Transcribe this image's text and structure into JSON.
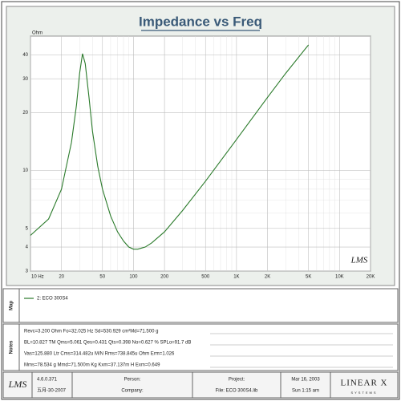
{
  "chart_data": {
    "type": "line",
    "title": "Impedance vs Freq",
    "y_label": "Ohm",
    "annotation": "LMS",
    "log_x": true,
    "log_y": true,
    "grid": true,
    "x": [
      10,
      15,
      20,
      25,
      28,
      30,
      32,
      34,
      37,
      40,
      45,
      50,
      60,
      70,
      80,
      90,
      100,
      110,
      130,
      150,
      200,
      300,
      500,
      1000,
      2000,
      3000,
      5000
    ],
    "series": [
      {
        "name": "2: ECO 300S4",
        "color": "#2a7a2a",
        "values": [
          4.6,
          5.6,
          8,
          14,
          22,
          32,
          40.5,
          36,
          24,
          16,
          10.5,
          8,
          5.8,
          4.8,
          4.3,
          4.0,
          3.9,
          3.9,
          4.0,
          4.2,
          4.8,
          6.2,
          8.8,
          14.5,
          24,
          32,
          45
        ]
      }
    ],
    "xlim": [
      10,
      20000
    ],
    "ylim": [
      3,
      50
    ],
    "xticks": [
      {
        "value": 10,
        "label": "10 Hz"
      },
      20,
      50,
      100,
      200,
      500,
      {
        "value": 1000,
        "label": "1K"
      },
      {
        "value": 2000,
        "label": "2K"
      },
      {
        "value": 5000,
        "label": "5K"
      },
      {
        "value": 10000,
        "label": "10K"
      },
      {
        "value": 20000,
        "label": "20K"
      }
    ],
    "yticks": [
      3,
      4,
      5,
      10,
      20,
      30,
      40
    ]
  },
  "map_label": "Map",
  "notes_label": "Notes",
  "notes": [
    "Revc=3.200 Ohm  Fo=32.025 Hz  Sd=530.929 cm²Md=71.500 g",
    "BL=10.827 TM  Qms=5.061  Qes=0.431  Qts=0.398  No=0.627 %  SPLo=91.7 dB",
    "Vas=125.880 Ltr  Cms=314.482u M/N  Rms=738.845u Ohm  Erm=1.026",
    "Mms=78.534 g  Mmd=71.500m Kg  Kxm=37.137m H  Exm=0.649"
  ],
  "footer": {
    "logo": "LMS",
    "version": "4.6.0.371",
    "date": "五月-30-2007",
    "person": "Person:",
    "company": "Company:",
    "project": "Project:",
    "file": "File: ECO 300S4.lib",
    "project_date": "Mar 16, 2003",
    "project_time": "Sun  1:15 am",
    "brand": "LINEAR X",
    "brand_sub": "SYSTEMS"
  }
}
